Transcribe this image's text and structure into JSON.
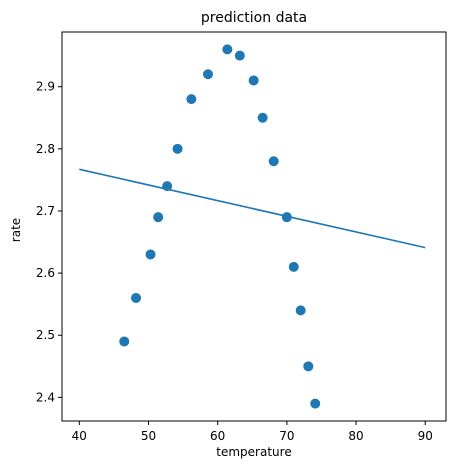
{
  "chart_data": {
    "type": "scatter",
    "title": "prediction data",
    "xlabel": "temperature",
    "ylabel": "rate",
    "xlim": [
      37.5,
      93.0
    ],
    "ylim": [
      2.362,
      2.988
    ],
    "xticks": [
      40,
      50,
      60,
      70,
      80,
      90
    ],
    "yticks": [
      2.4,
      2.5,
      2.6,
      2.7,
      2.8,
      2.9
    ],
    "grid": false,
    "legend": "none",
    "colors": {
      "series": "#1f77b4"
    },
    "scatter": {
      "x": [
        46.5,
        48.2,
        50.3,
        51.4,
        52.7,
        54.2,
        56.2,
        58.6,
        61.4,
        63.2,
        65.2,
        66.5,
        68.1,
        70.0,
        71.0,
        72.0,
        73.1,
        74.1
      ],
      "y": [
        2.49,
        2.56,
        2.63,
        2.69,
        2.74,
        2.8,
        2.88,
        2.92,
        2.96,
        2.95,
        2.91,
        2.85,
        2.78,
        2.69,
        2.61,
        2.54,
        2.45,
        2.39
      ]
    },
    "line": {
      "x": [
        40,
        90
      ],
      "y": [
        2.767,
        2.641
      ]
    }
  }
}
